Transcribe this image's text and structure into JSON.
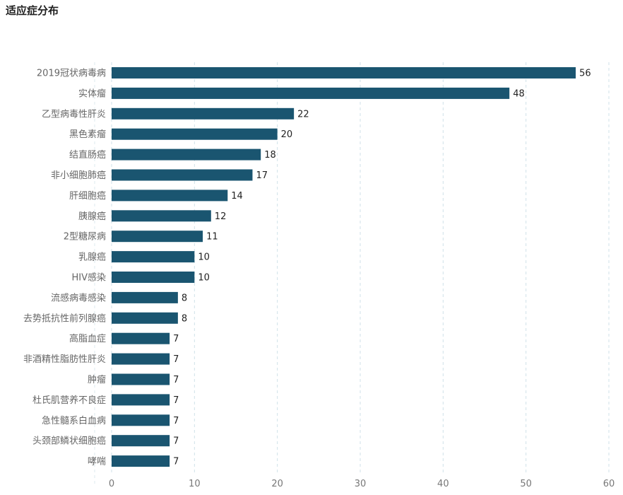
{
  "chart_data": {
    "type": "bar",
    "orientation": "horizontal",
    "title": "适应症分布",
    "categories": [
      "2019冠状病毒病",
      "实体瘤",
      "乙型病毒性肝炎",
      "黑色素瘤",
      "结直肠癌",
      "非小细胞肺癌",
      "肝细胞癌",
      "胰腺癌",
      "2型糖尿病",
      "乳腺癌",
      "HIV感染",
      "流感病毒感染",
      "去势抵抗性前列腺癌",
      "高脂血症",
      "非酒精性脂肪性肝炎",
      "肿瘤",
      "杜氏肌营养不良症",
      "急性髓系白血病",
      "头颈部鳞状细胞癌",
      "哮喘"
    ],
    "values": [
      56,
      48,
      22,
      20,
      18,
      17,
      14,
      12,
      11,
      10,
      10,
      8,
      8,
      7,
      7,
      7,
      7,
      7,
      7,
      7
    ],
    "xlim": [
      0,
      60
    ],
    "xticks": [
      0,
      10,
      20,
      30,
      40,
      50,
      60
    ],
    "grid": "vertical dashed",
    "bar_color": "#1a5570",
    "data_labels": true
  }
}
